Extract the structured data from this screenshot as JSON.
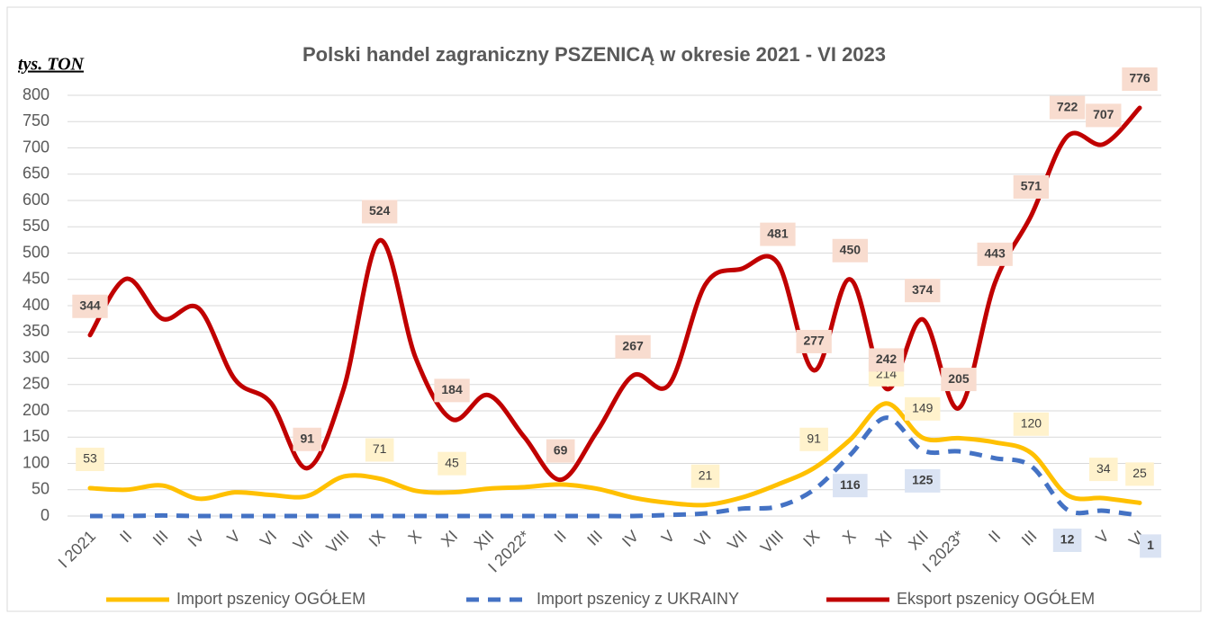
{
  "chart_data": {
    "type": "line",
    "title": "Polski handel zagraniczny PSZENICĄ w okresie 2021 - VI 2023",
    "y_axis_label": "tys. TON",
    "categories": [
      "I 2021",
      "II",
      "III",
      "IV",
      "V",
      "VI",
      "VII",
      "VIII",
      "IX",
      "X",
      "XI",
      "XII",
      "I 2022*",
      "II",
      "III",
      "IV",
      "V",
      "VI",
      "VII",
      "VIII",
      "IX",
      "X",
      "XI",
      "XII",
      "I 2023*",
      "II",
      "III",
      "IV",
      "V",
      "VI"
    ],
    "series": [
      {
        "name": "Import pszenicy OGÓŁEM",
        "color": "#ffc000",
        "line_style": "solid",
        "label_fill": "#fff2cc",
        "label_bold": false,
        "values": [
          53,
          50,
          58,
          33,
          45,
          40,
          38,
          75,
          71,
          48,
          45,
          52,
          55,
          60,
          52,
          35,
          25,
          21,
          35,
          60,
          91,
          145,
          214,
          149,
          148,
          140,
          120,
          40,
          34,
          25
        ],
        "value_labels": [
          "53",
          null,
          null,
          null,
          null,
          null,
          null,
          null,
          "71",
          null,
          "45",
          null,
          null,
          null,
          null,
          null,
          null,
          "21",
          null,
          null,
          "91",
          null,
          "214",
          "149",
          null,
          null,
          "120",
          null,
          "34",
          "25"
        ]
      },
      {
        "name": "Import pszenicy z UKRAINY",
        "color": "#4472c4",
        "line_style": "dashed",
        "label_fill": "#dae3f3",
        "label_bold": true,
        "values": [
          0,
          0,
          1,
          0,
          0,
          0,
          0,
          0,
          0,
          0,
          0,
          0,
          0,
          0,
          0,
          0,
          2,
          5,
          14,
          18,
          50,
          116,
          187,
          125,
          123,
          110,
          95,
          12,
          10,
          1
        ],
        "value_labels": [
          null,
          null,
          null,
          null,
          null,
          null,
          null,
          null,
          null,
          null,
          null,
          null,
          null,
          null,
          null,
          null,
          null,
          null,
          null,
          null,
          null,
          "116",
          null,
          "125",
          null,
          null,
          null,
          "12",
          null,
          "1"
        ]
      },
      {
        "name": "Eksport pszenicy OGÓŁEM",
        "color": "#c00000",
        "line_style": "solid",
        "label_fill": "#f8dccf",
        "label_bold": true,
        "values": [
          344,
          451,
          375,
          395,
          260,
          215,
          91,
          240,
          524,
          300,
          184,
          230,
          150,
          69,
          160,
          267,
          250,
          440,
          470,
          481,
          277,
          450,
          242,
          374,
          205,
          443,
          571,
          722,
          707,
          776
        ],
        "value_labels": [
          "344",
          null,
          null,
          null,
          null,
          null,
          "91",
          null,
          "524",
          null,
          "184",
          null,
          null,
          "69",
          null,
          "267",
          null,
          null,
          null,
          "481",
          "277",
          "450",
          "242",
          "374",
          "205",
          "443",
          "571",
          "722",
          "707",
          "776"
        ]
      }
    ],
    "ylim": [
      0,
      800
    ],
    "yticks": [
      0,
      50,
      100,
      150,
      200,
      250,
      300,
      350,
      400,
      450,
      500,
      550,
      600,
      650,
      700,
      750,
      800
    ],
    "grid": true,
    "legend": "bottom"
  }
}
